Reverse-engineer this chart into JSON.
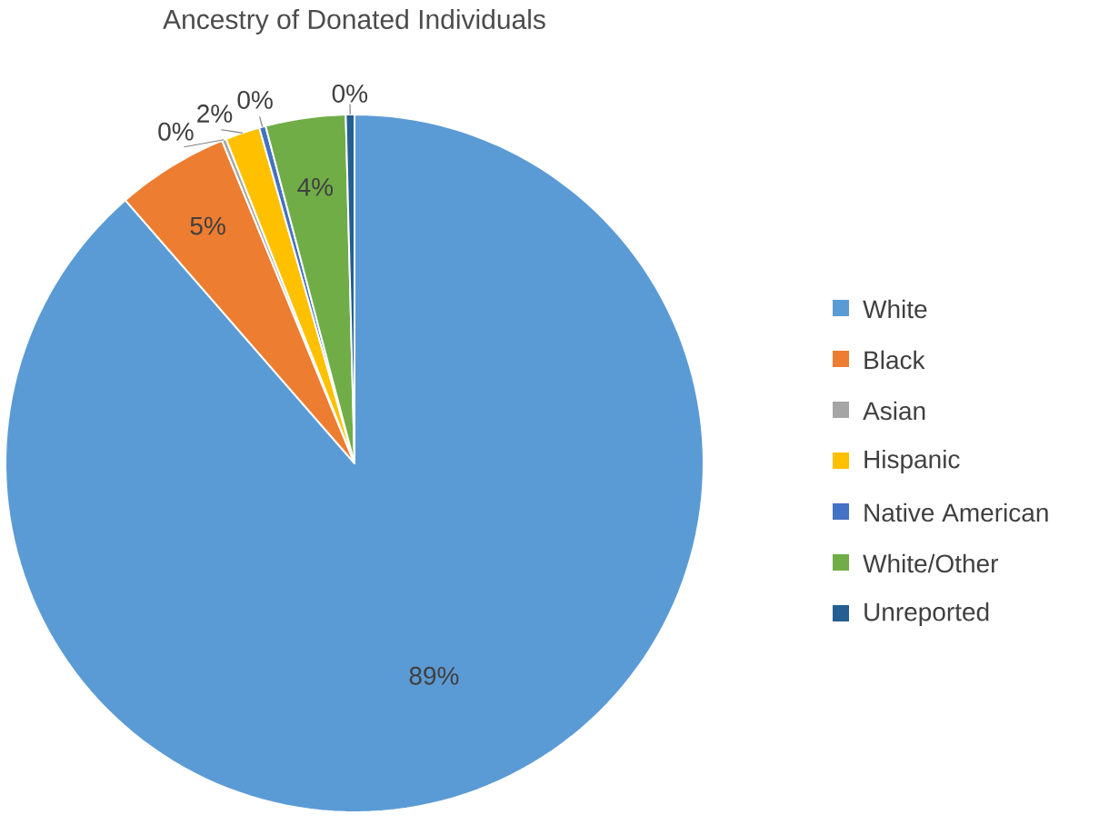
{
  "chart_data": {
    "type": "pie",
    "title": "Ancestry of Donated Individuals",
    "categories": [
      "White",
      "Black",
      "Asian",
      "Hispanic",
      "Native American",
      "White/Other",
      "Unreported"
    ],
    "values": [
      88.6,
      5.2,
      0.2,
      1.6,
      0.3,
      3.7,
      0.4
    ],
    "value_labels": [
      "89%",
      "5%",
      "0%",
      "2%",
      "0%",
      "4%",
      "0%"
    ],
    "colors": [
      "#5b9bd5",
      "#ed7d31",
      "#a5a5a5",
      "#ffc000",
      "#4472c4",
      "#70ad47",
      "#255e91"
    ],
    "legend": "right"
  }
}
